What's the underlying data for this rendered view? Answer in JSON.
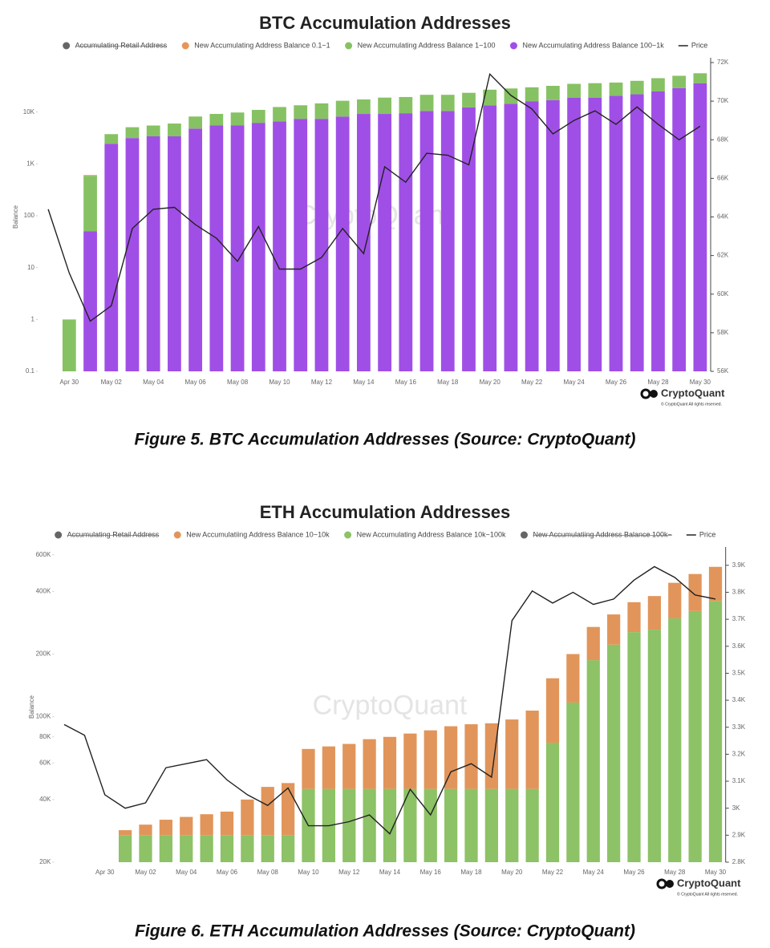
{
  "chart_data": [
    {
      "type": "bar",
      "title": "BTC Accumulation Addresses",
      "caption": "Figure 5. BTC Accumulation Addresses  (Source: CryptoQuant)",
      "ylabel": "Balance",
      "watermark": "CryptoQuant",
      "logo_text": "CryptoQuant",
      "copyright": "© CryptoQuant All rights reserved.",
      "log_scale": true,
      "categories": [
        null,
        "Apr 30",
        null,
        "May 02",
        null,
        "May 04",
        null,
        "May 06",
        null,
        "May 08",
        null,
        "May 10",
        null,
        "May 12",
        null,
        "May 14",
        null,
        "May 16",
        null,
        "May 18",
        null,
        "May 20",
        null,
        "May 22",
        null,
        "May 24",
        null,
        "May 26",
        null,
        "May 28",
        null,
        "May 30"
      ],
      "ylim": [
        0.1,
        90000
      ],
      "yticks": [
        0.1,
        1,
        10,
        100,
        {
          "value": 1000,
          "label": "1K"
        },
        {
          "value": 10000,
          "label": "10K"
        }
      ],
      "y2lim": [
        56000,
        72000
      ],
      "y2ticks": [
        {
          "value": 56000,
          "label": "56K"
        },
        {
          "value": 58000,
          "label": "58K"
        },
        {
          "value": 60000,
          "label": "60K"
        },
        {
          "value": 62000,
          "label": "62K"
        },
        {
          "value": 64000,
          "label": "64K"
        },
        {
          "value": 66000,
          "label": "66K"
        },
        {
          "value": 68000,
          "label": "68K"
        },
        {
          "value": 70000,
          "label": "70K"
        },
        {
          "value": 72000,
          "label": "72K"
        }
      ],
      "series": [
        {
          "name": "Accumulating Retail Address",
          "color": "#666666",
          "visible": false
        },
        {
          "name": "New Accumulating Address Balance 0.1~1",
          "color": "#e8955a",
          "type": "bar",
          "values": [
            null,
            null,
            20,
            null,
            null,
            null,
            null,
            null,
            null,
            null,
            null,
            null,
            null,
            null,
            null,
            null,
            null,
            null,
            null,
            null,
            null,
            null,
            null,
            null,
            null,
            null,
            null,
            null,
            null,
            null,
            null,
            null
          ]
        },
        {
          "name": "New Accumulating Address Balance 1~100",
          "color": "#86c263",
          "type": "bar",
          "values": [
            null,
            1,
            540,
            1300,
            1950,
            2100,
            2600,
            3400,
            3700,
            4300,
            4800,
            5900,
            6100,
            7300,
            8300,
            8300,
            9800,
            10000,
            11000,
            11000,
            11200,
            13500,
            14000,
            14000,
            15000,
            16000,
            17000,
            16500,
            18000,
            20000,
            21000,
            20000
          ]
        },
        {
          "name": "New Accumulating Address Balance 100~1k",
          "color": "#a04fe6",
          "type": "bar",
          "values": [
            null,
            null,
            50,
            2450,
            3150,
            3400,
            3400,
            4800,
            5500,
            5500,
            6200,
            6600,
            7400,
            7400,
            8200,
            9200,
            9200,
            9500,
            10500,
            10500,
            12300,
            13500,
            14500,
            16000,
            17000,
            19000,
            19000,
            20500,
            22000,
            25000,
            29000,
            36000
          ]
        },
        {
          "name": "Price",
          "color": "#222222",
          "type": "line",
          "axis": "y2",
          "values": [
            64400,
            61100,
            58600,
            59400,
            63400,
            64400,
            64500,
            63600,
            62900,
            61700,
            63500,
            61300,
            61300,
            61900,
            63400,
            62100,
            66600,
            65800,
            67300,
            67200,
            66700,
            71400,
            70300,
            69600,
            68300,
            69000,
            69500,
            68800,
            69700,
            68800,
            68000,
            68700
          ]
        }
      ]
    },
    {
      "type": "bar",
      "title": "ETH Accumulation Addresses",
      "caption": "Figure 6. ETH Accumulation Addresses  (Source: CryptoQuant)",
      "ylabel": "Balance",
      "watermark": "CryptoQuant",
      "logo_text": "CryptoQuant",
      "copyright": "© CryptoQuant All rights reserved.",
      "log_scale": true,
      "categories": [
        null,
        null,
        "Apr 30",
        null,
        "May 02",
        null,
        "May 04",
        null,
        "May 06",
        null,
        "May 08",
        null,
        "May 10",
        null,
        "May 12",
        null,
        "May 14",
        null,
        "May 16",
        null,
        "May 18",
        null,
        "May 20",
        null,
        "May 22",
        null,
        "May 24",
        null,
        "May 26",
        null,
        "May 28",
        null,
        "May 30"
      ],
      "ylim": [
        20000,
        620000
      ],
      "yticks": [
        {
          "value": 20000,
          "label": "20K"
        },
        {
          "value": 40000,
          "label": "40K"
        },
        {
          "value": 60000,
          "label": "60K"
        },
        {
          "value": 80000,
          "label": "80K"
        },
        {
          "value": 100000,
          "label": "100K"
        },
        {
          "value": 200000,
          "label": "200K"
        },
        {
          "value": 400000,
          "label": "400K"
        },
        {
          "value": 600000,
          "label": "600K"
        }
      ],
      "y2lim": [
        2800,
        3950
      ],
      "y2ticks": [
        {
          "value": 2800,
          "label": "2.8K"
        },
        {
          "value": 2900,
          "label": "2.9K"
        },
        {
          "value": 3000,
          "label": "3K"
        },
        {
          "value": 3100,
          "label": "3.1K"
        },
        {
          "value": 3200,
          "label": "3.2K"
        },
        {
          "value": 3300,
          "label": "3.3K"
        },
        {
          "value": 3400,
          "label": "3.4K"
        },
        {
          "value": 3500,
          "label": "3.5K"
        },
        {
          "value": 3600,
          "label": "3.6K"
        },
        {
          "value": 3700,
          "label": "3.7K"
        },
        {
          "value": 3800,
          "label": "3.8K"
        },
        {
          "value": 3900,
          "label": "3.9K"
        }
      ],
      "series": [
        {
          "name": "Accumulating Retail Address",
          "color": "#666666",
          "visible": false
        },
        {
          "name": "New Accumulatiing Address Balance 10~10k",
          "color": "#e2955a",
          "type": "bar",
          "values": [
            null,
            null,
            null,
            1500,
            3300,
            5000,
            6000,
            7000,
            8000,
            13000,
            19000,
            21000,
            25000,
            27000,
            29000,
            33000,
            35000,
            38000,
            41000,
            45000,
            47000,
            48000,
            52000,
            62000,
            78000,
            83000,
            83000,
            88000,
            100000,
            118000,
            143000,
            163000,
            165000
          ]
        },
        {
          "name": "New Accumulating Address Balance 10k~100k",
          "color": "#8dc266",
          "type": "bar",
          "values": [
            null,
            null,
            null,
            27000,
            27000,
            27000,
            27000,
            27000,
            27000,
            27000,
            27000,
            27000,
            45000,
            45000,
            45000,
            45000,
            45000,
            45000,
            45000,
            45000,
            45000,
            45000,
            45000,
            45000,
            75000,
            117000,
            187000,
            222000,
            255000,
            262000,
            297000,
            322000,
            360000
          ]
        },
        {
          "name": "New Accumulatiing Address Balance 100k~",
          "color": "#666666",
          "visible": false
        },
        {
          "name": "Price",
          "color": "#222222",
          "type": "line",
          "axis": "y2",
          "values": [
            3310,
            3270,
            3050,
            3000,
            3020,
            3150,
            3165,
            3180,
            3105,
            3050,
            3010,
            3075,
            2935,
            2935,
            2950,
            2975,
            2905,
            3070,
            2975,
            3135,
            3165,
            3115,
            3695,
            3805,
            3760,
            3800,
            3755,
            3775,
            3845,
            3895,
            3855,
            3790,
            3775
          ]
        }
      ]
    }
  ]
}
